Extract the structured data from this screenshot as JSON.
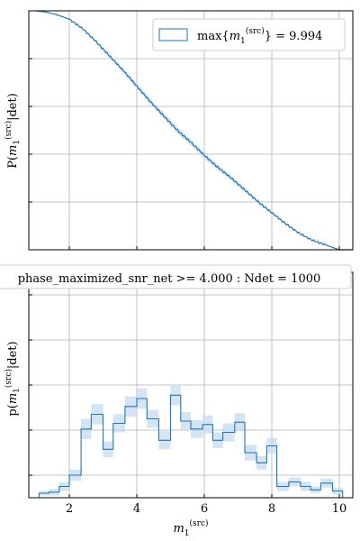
{
  "figure": {
    "title": "phase_maximized_snr_net >= 4.000 : Ndet = 1000"
  },
  "colors": {
    "line": "#1f77b4",
    "band": "#c6dbef",
    "grid": "#b0b0b0",
    "axes": "#000000"
  },
  "chart_data": [
    {
      "type": "line",
      "panel": "top",
      "ylabel": "P(m_1^(src)|det)",
      "xlim": [
        0.8,
        10.4
      ],
      "ylim": [
        0,
        1.0
      ],
      "grid": true,
      "legend": {
        "placement": "top-right",
        "label": "max{m_1^(src)} = 9.994"
      },
      "x": [
        1.0,
        1.3,
        1.6,
        2.0,
        2.4,
        2.8,
        3.2,
        3.6,
        4.0,
        4.4,
        4.8,
        5.2,
        5.6,
        6.0,
        6.4,
        6.8,
        7.2,
        7.6,
        8.0,
        8.4,
        8.8,
        9.2,
        9.6,
        10.0,
        10.4
      ],
      "y": [
        1.0,
        0.995,
        0.985,
        0.965,
        0.925,
        0.87,
        0.81,
        0.75,
        0.685,
        0.62,
        0.56,
        0.5,
        0.45,
        0.395,
        0.345,
        0.3,
        0.25,
        0.2,
        0.155,
        0.11,
        0.07,
        0.04,
        0.02,
        0.0,
        0.0
      ]
    },
    {
      "type": "bar",
      "panel": "bottom",
      "ylabel": "p(m_1^(src)|det)",
      "xlabel": "m_1^(src)",
      "xlim": [
        0.8,
        10.4
      ],
      "ylim": [
        0,
        0.2
      ],
      "grid": true,
      "xticks": [
        "2",
        "4",
        "6",
        "8",
        "10"
      ],
      "bin_edges": [
        1.1,
        1.4,
        1.7,
        2.0,
        2.35,
        2.65,
        3.0,
        3.3,
        3.65,
        4.0,
        4.3,
        4.65,
        5.0,
        5.3,
        5.6,
        5.95,
        6.25,
        6.55,
        6.9,
        7.2,
        7.55,
        7.85,
        8.15,
        8.5,
        8.85,
        9.15,
        9.45,
        9.8,
        10.1
      ],
      "values": [
        0.004,
        0.005,
        0.01,
        0.02,
        0.061,
        0.074,
        0.043,
        0.066,
        0.081,
        0.088,
        0.07,
        0.051,
        0.091,
        0.068,
        0.061,
        0.065,
        0.051,
        0.058,
        0.067,
        0.04,
        0.031,
        0.046,
        0.01,
        0.014,
        0.01,
        0.007,
        0.013,
        0.006,
        0.0
      ],
      "band_halfwidth": [
        0.002,
        0.003,
        0.004,
        0.005,
        0.009,
        0.009,
        0.007,
        0.008,
        0.009,
        0.009,
        0.008,
        0.008,
        0.009,
        0.008,
        0.008,
        0.008,
        0.007,
        0.008,
        0.008,
        0.007,
        0.006,
        0.007,
        0.004,
        0.004,
        0.004,
        0.003,
        0.004,
        0.003,
        0.0
      ]
    }
  ]
}
